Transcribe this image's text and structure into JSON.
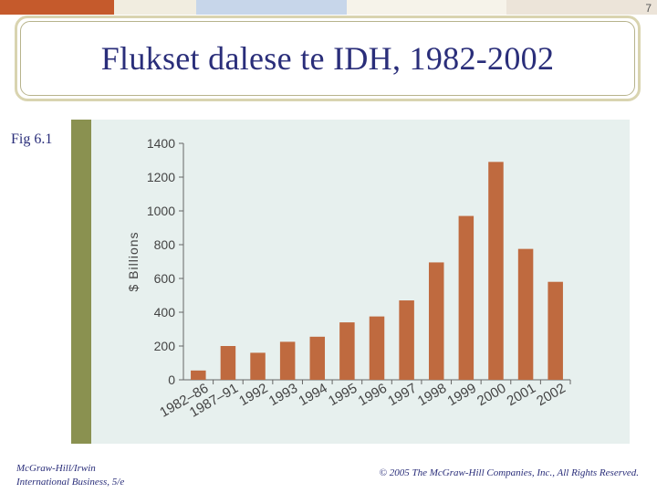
{
  "slide_number": "7",
  "title": "Flukset dalese te IDH, 1982-2002",
  "figure_label": "Fig 6.1",
  "colors": {
    "bar": "#bf6a3f",
    "accent_strip": "#8a9150",
    "panel": "#e7f0ee",
    "title_text": "#2a2e7a"
  },
  "chart_data": {
    "type": "bar",
    "title": "",
    "xlabel": "",
    "ylabel": "$ Billions",
    "ylim": [
      0,
      1400
    ],
    "yticks": [
      0,
      200,
      400,
      600,
      800,
      1000,
      1200,
      1400
    ],
    "categories": [
      "1982–86",
      "1987–91",
      "1992",
      "1993",
      "1994",
      "1995",
      "1996",
      "1997",
      "1998",
      "1999",
      "2000",
      "2001",
      "2002"
    ],
    "values": [
      55,
      200,
      160,
      225,
      255,
      340,
      375,
      470,
      695,
      970,
      1290,
      775,
      580
    ],
    "grid": false,
    "legend": "none"
  },
  "footer": {
    "left_line1": "McGraw-Hill/Irwin",
    "left_line2": "International Business, 5/e",
    "right": "© 2005 The McGraw-Hill Companies, Inc., All Rights Reserved."
  }
}
